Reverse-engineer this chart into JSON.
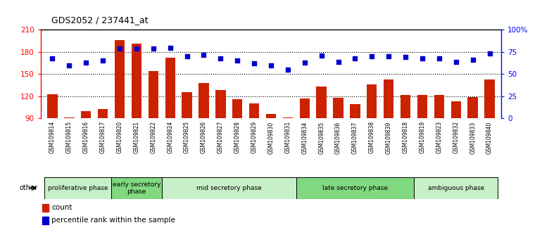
{
  "title": "GDS2052 / 237441_at",
  "samples": [
    "GSM109814",
    "GSM109815",
    "GSM109816",
    "GSM109817",
    "GSM109820",
    "GSM109821",
    "GSM109822",
    "GSM109824",
    "GSM109825",
    "GSM109826",
    "GSM109827",
    "GSM109828",
    "GSM109829",
    "GSM109830",
    "GSM109831",
    "GSM109834",
    "GSM109835",
    "GSM109836",
    "GSM109837",
    "GSM109838",
    "GSM109839",
    "GSM109818",
    "GSM109819",
    "GSM109823",
    "GSM109832",
    "GSM109833",
    "GSM109840"
  ],
  "counts": [
    123,
    91,
    100,
    103,
    196,
    191,
    154,
    172,
    125,
    138,
    128,
    116,
    110,
    96,
    91,
    117,
    133,
    118,
    109,
    136,
    143,
    122,
    122,
    122,
    113,
    119,
    143
  ],
  "percentiles": [
    68,
    60,
    63,
    65,
    79,
    79,
    79,
    80,
    70,
    72,
    68,
    65,
    62,
    60,
    55,
    63,
    71,
    64,
    68,
    70,
    70,
    69,
    68,
    68,
    64,
    66,
    73
  ],
  "ylim_left": [
    90,
    210
  ],
  "ylim_right": [
    0,
    100
  ],
  "yticks_left": [
    90,
    120,
    150,
    180,
    210
  ],
  "yticks_right": [
    0,
    25,
    50,
    75,
    100
  ],
  "ytick_labels_right": [
    "0",
    "25",
    "50",
    "75",
    "100%"
  ],
  "bar_color": "#cc2200",
  "dot_color": "#0000cc",
  "phases": [
    {
      "label": "proliferative phase",
      "start": 0,
      "end": 3,
      "color": "#c8f0c8"
    },
    {
      "label": "early secretory\nphase",
      "start": 4,
      "end": 6,
      "color": "#80d880"
    },
    {
      "label": "mid secretory phase",
      "start": 7,
      "end": 14,
      "color": "#c8f0c8"
    },
    {
      "label": "late secretory phase",
      "start": 15,
      "end": 21,
      "color": "#80d880"
    },
    {
      "label": "ambiguous phase",
      "start": 22,
      "end": 26,
      "color": "#c8f0c8"
    }
  ],
  "other_label": "other",
  "legend_bar_label": "count",
  "legend_dot_label": "percentile rank within the sample"
}
